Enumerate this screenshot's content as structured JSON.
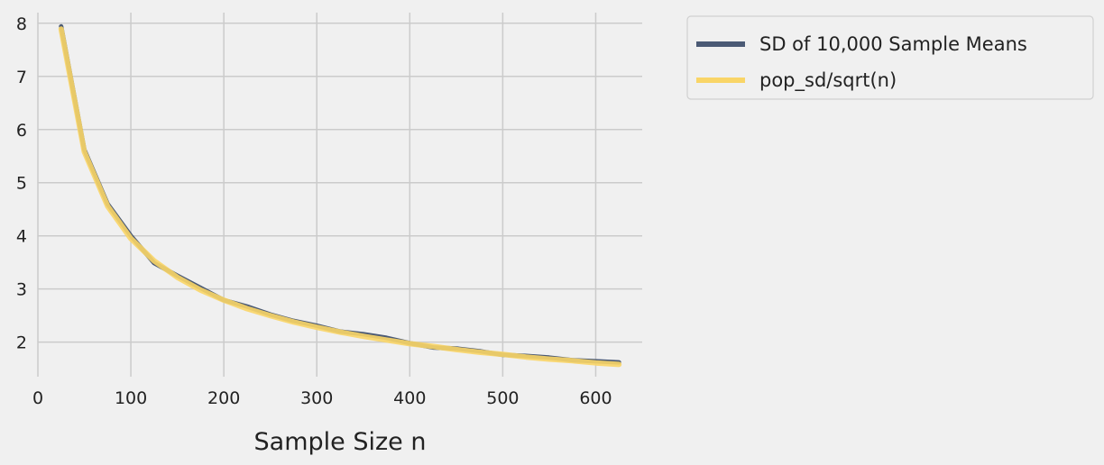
{
  "chart_data": {
    "type": "line",
    "title": "",
    "xlabel": "Sample Size n",
    "ylabel": "",
    "xlim": [
      0,
      650
    ],
    "ylim": [
      1.35,
      8.2
    ],
    "xticks": [
      0,
      100,
      200,
      300,
      400,
      500,
      600
    ],
    "yticks": [
      2,
      3,
      4,
      5,
      6,
      7,
      8
    ],
    "grid": true,
    "legend_position": "outside-right-top",
    "series": [
      {
        "name": "SD of 10,000 Sample Means",
        "color": "#4b5a75",
        "x": [
          25,
          50,
          75,
          100,
          125,
          150,
          175,
          200,
          225,
          250,
          275,
          300,
          325,
          350,
          375,
          400,
          425,
          450,
          475,
          500,
          525,
          550,
          575,
          600,
          625
        ],
        "y": [
          7.94,
          5.62,
          4.6,
          4.0,
          3.49,
          3.25,
          3.02,
          2.79,
          2.67,
          2.52,
          2.4,
          2.31,
          2.2,
          2.15,
          2.08,
          1.98,
          1.9,
          1.88,
          1.83,
          1.76,
          1.74,
          1.71,
          1.66,
          1.64,
          1.62
        ]
      },
      {
        "name": "pop_sd/sqrt(n)",
        "color": "#f9d567",
        "x": [
          25,
          50,
          75,
          100,
          125,
          150,
          175,
          200,
          225,
          250,
          275,
          300,
          325,
          350,
          375,
          400,
          425,
          450,
          475,
          500,
          525,
          550,
          575,
          600,
          625
        ],
        "y": [
          7.89,
          5.58,
          4.56,
          3.95,
          3.53,
          3.22,
          2.98,
          2.79,
          2.63,
          2.5,
          2.38,
          2.28,
          2.19,
          2.11,
          2.04,
          1.97,
          1.92,
          1.86,
          1.81,
          1.77,
          1.72,
          1.68,
          1.65,
          1.61,
          1.58
        ]
      }
    ]
  }
}
